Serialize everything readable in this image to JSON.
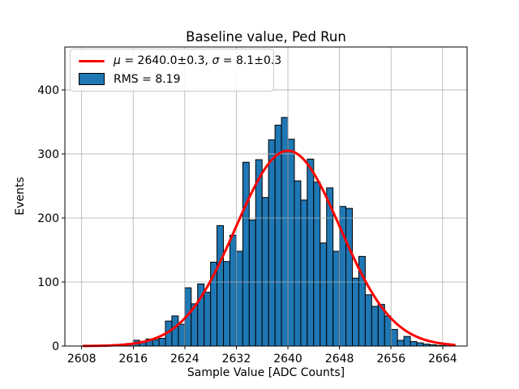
{
  "figure": {
    "title": "Baseline value, Ped Run",
    "background": "#ffffff"
  },
  "legend": {
    "fit_label": "μ = 2640.0±0.3, σ = 8.1±0.3",
    "hist_label": "RMS = 8.19"
  },
  "chart_data": {
    "type": "bar",
    "subtype": "histogram-with-gaussian-fit",
    "title": "Baseline value, Ped Run",
    "xlabel": "Sample Value [ADC Counts]",
    "ylabel": "Events",
    "xlim": [
      2605.4,
      2667.8
    ],
    "ylim": [
      0,
      467
    ],
    "xticks": [
      2608,
      2616,
      2624,
      2632,
      2640,
      2648,
      2656,
      2664
    ],
    "yticks": [
      0,
      100,
      200,
      300,
      400
    ],
    "grid": true,
    "legend_position": "upper-left",
    "colors": {
      "bar_fill": "#1f77b4",
      "bar_edge": "#000000",
      "curve": "#ff0000",
      "grid": "#b0b0b0",
      "spine": "#000000",
      "text": "#000000"
    },
    "bins": {
      "start": 2612,
      "width": 1,
      "counts": [
        1,
        2,
        3,
        4,
        9,
        7,
        11,
        10,
        12,
        39,
        47,
        34,
        91,
        66,
        97,
        84,
        131,
        188,
        132,
        173,
        148,
        287,
        197,
        291,
        232,
        322,
        345,
        357,
        323,
        258,
        228,
        292,
        256,
        161,
        247,
        148,
        218,
        215,
        106,
        140,
        80,
        62,
        65,
        47,
        26,
        9,
        15,
        7,
        5,
        3,
        2,
        1,
        2,
        1
      ]
    },
    "fit": {
      "mu": 2640.0,
      "mu_err": 0.3,
      "sigma": 8.1,
      "sigma_err": 0.3,
      "rms": 8.19,
      "amplitude": 305,
      "x_start": 2608.3,
      "x_end": 2666.0,
      "line_width": 3
    }
  }
}
